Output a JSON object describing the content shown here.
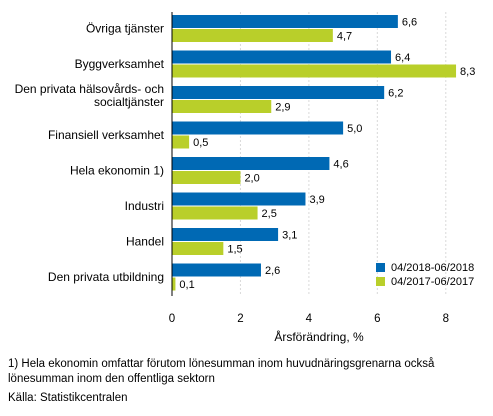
{
  "chart_data": {
    "type": "bar",
    "orientation": "horizontal",
    "categories": [
      [
        "Övriga tjänster"
      ],
      [
        "Byggverksamhet"
      ],
      [
        "Den privata hälsovårds- och",
        "socialtjänster"
      ],
      [
        "Finansiell verksamhet"
      ],
      [
        "Hela ekonomin 1)"
      ],
      [
        "Industri"
      ],
      [
        "Handel"
      ],
      [
        "Den privata utbildning"
      ]
    ],
    "series": [
      {
        "name": "04/2018-06/2018",
        "color": "#0069b4",
        "values": [
          6.6,
          6.4,
          6.2,
          5.0,
          4.6,
          3.9,
          3.1,
          2.6
        ],
        "labels": [
          "6,6",
          "6,4",
          "6,2",
          "5,0",
          "4,6",
          "3,9",
          "3,1",
          "2,6"
        ]
      },
      {
        "name": "04/2017-06/2017",
        "color": "#b9cf2a",
        "values": [
          4.7,
          8.3,
          2.9,
          0.5,
          2.0,
          2.5,
          1.5,
          0.1
        ],
        "labels": [
          "4,7",
          "8,3",
          "2,9",
          "0,5",
          "2,0",
          "2,5",
          "1,5",
          "0,1"
        ]
      }
    ],
    "xlim": [
      0,
      9
    ],
    "xticks": [
      0,
      2,
      4,
      6,
      8
    ],
    "xtick_labels": [
      "0",
      "2",
      "4",
      "6",
      "8"
    ],
    "xlabel": "Årsförändring, %",
    "grid": "vertical",
    "legend_position": "bottom-right"
  },
  "footnote": {
    "line1": "1) Hela ekonomin omfattar förutom lönesumman inom huvudnäringsgrenarna också",
    "line2": "lönesumman inom den offentliga sektorn"
  },
  "source": "Källa: Statistikcentralen"
}
